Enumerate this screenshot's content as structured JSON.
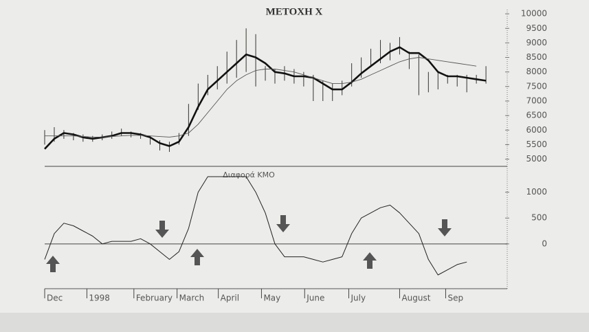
{
  "chart_data": [
    {
      "type": "line",
      "title": "METOXH X",
      "x": [
        0,
        1,
        2,
        3,
        4,
        5,
        6,
        7,
        8,
        9,
        10,
        11,
        12,
        13,
        14,
        15,
        16,
        17,
        18,
        19,
        20,
        21,
        22,
        23,
        24,
        25,
        26,
        27,
        28,
        29,
        30,
        31,
        32,
        33,
        34,
        35,
        36,
        37,
        38,
        39,
        40,
        41,
        42,
        43,
        44,
        45,
        46
      ],
      "xlim": [
        0,
        48
      ],
      "ylim": [
        4800,
        10050
      ],
      "yticks": [
        5000,
        5500,
        6000,
        6500,
        7000,
        7500,
        8000,
        8500,
        9000,
        9500,
        10000
      ],
      "range_bars": {
        "color": "#333333",
        "low": [
          5500,
          5600,
          5700,
          5650,
          5600,
          5600,
          5650,
          5700,
          5800,
          5750,
          5700,
          5500,
          5300,
          5250,
          5500,
          5800,
          6700,
          7200,
          7400,
          7600,
          7800,
          8000,
          7500,
          7700,
          7600,
          7700,
          7600,
          7500,
          7000,
          7000,
          7000,
          7200,
          7500,
          7800,
          8200,
          8300,
          8400,
          8600,
          8100,
          7200,
          7300,
          7400,
          7600,
          7500,
          7300,
          7600,
          7600
        ],
        "high": [
          6000,
          6100,
          6000,
          5900,
          5850,
          5800,
          5850,
          5950,
          6050,
          5950,
          5900,
          5800,
          5650,
          5600,
          5900,
          6900,
          7600,
          7900,
          8200,
          8700,
          9100,
          9500,
          9300,
          8200,
          8100,
          8200,
          8100,
          8000,
          7900,
          7700,
          7600,
          7700,
          8300,
          8500,
          8800,
          9100,
          9000,
          9200,
          8700,
          8600,
          8000,
          8000,
          7900,
          7900,
          7900,
          7900,
          8200
        ]
      },
      "series": [
        {
          "color": "#111111",
          "width": 2.6,
          "values": [
            5350,
            5700,
            5900,
            5850,
            5750,
            5700,
            5750,
            5800,
            5900,
            5900,
            5850,
            5750,
            5550,
            5450,
            5600,
            6100,
            6800,
            7400,
            7700,
            8000,
            8300,
            8600,
            8500,
            8300,
            8000,
            7950,
            7850,
            7850,
            7800,
            7600,
            7400,
            7400,
            7650,
            7950,
            8200,
            8450,
            8700,
            8850,
            8650,
            8650,
            8400,
            8000,
            7850,
            7850,
            7800,
            7750,
            7700
          ]
        },
        {
          "color": "#555555",
          "width": 0.9,
          "values": [
            5800,
            5800,
            5800,
            5800,
            5780,
            5760,
            5760,
            5780,
            5800,
            5820,
            5820,
            5800,
            5780,
            5760,
            5800,
            5900,
            6200,
            6600,
            7000,
            7400,
            7700,
            7900,
            8050,
            8100,
            8100,
            8050,
            8000,
            7900,
            7800,
            7700,
            7600,
            7600,
            7650,
            7750,
            7900,
            8050,
            8200,
            8350,
            8450,
            8500,
            8450,
            8400,
            8350,
            8300,
            8250,
            8200,
            null
          ]
        }
      ]
    },
    {
      "type": "line",
      "annotation": "Διαφορά ΚΜΟ",
      "x": [
        0,
        1,
        2,
        3,
        4,
        5,
        6,
        7,
        8,
        9,
        10,
        11,
        12,
        13,
        14,
        15,
        16,
        17,
        18,
        19,
        20,
        21,
        22,
        23,
        24,
        25,
        26,
        27,
        28,
        29,
        30,
        31,
        32,
        33,
        34,
        35,
        36,
        37,
        38,
        39,
        40,
        41,
        42,
        43,
        44
      ],
      "xlim": [
        0,
        48
      ],
      "ylim": [
        -800,
        1500
      ],
      "yticks": [
        0,
        500,
        1000
      ],
      "xticks": [
        {
          "value": 0,
          "label": "Dec"
        },
        {
          "value": 4.4,
          "label": "1998"
        },
        {
          "value": 9.3,
          "label": "February"
        },
        {
          "value": 13.8,
          "label": "March"
        },
        {
          "value": 18.1,
          "label": "April"
        },
        {
          "value": 22.6,
          "label": "May"
        },
        {
          "value": 27.1,
          "label": "June"
        },
        {
          "value": 31.7,
          "label": "July"
        },
        {
          "value": 37,
          "label": "August"
        },
        {
          "value": 41.8,
          "label": "Sep"
        }
      ],
      "series": [
        {
          "color": "#222222",
          "width": 1,
          "values": [
            -300,
            200,
            400,
            350,
            250,
            150,
            0,
            50,
            50,
            50,
            100,
            0,
            -150,
            -300,
            -150,
            300,
            1000,
            1300,
            1300,
            1300,
            1300,
            1300,
            1000,
            600,
            0,
            -250,
            -250,
            -250,
            -300,
            -350,
            -300,
            -250,
            200,
            500,
            600,
            700,
            750,
            600,
            400,
            200,
            -300,
            -600,
            -500,
            -400,
            -350
          ]
        }
      ]
    }
  ]
}
